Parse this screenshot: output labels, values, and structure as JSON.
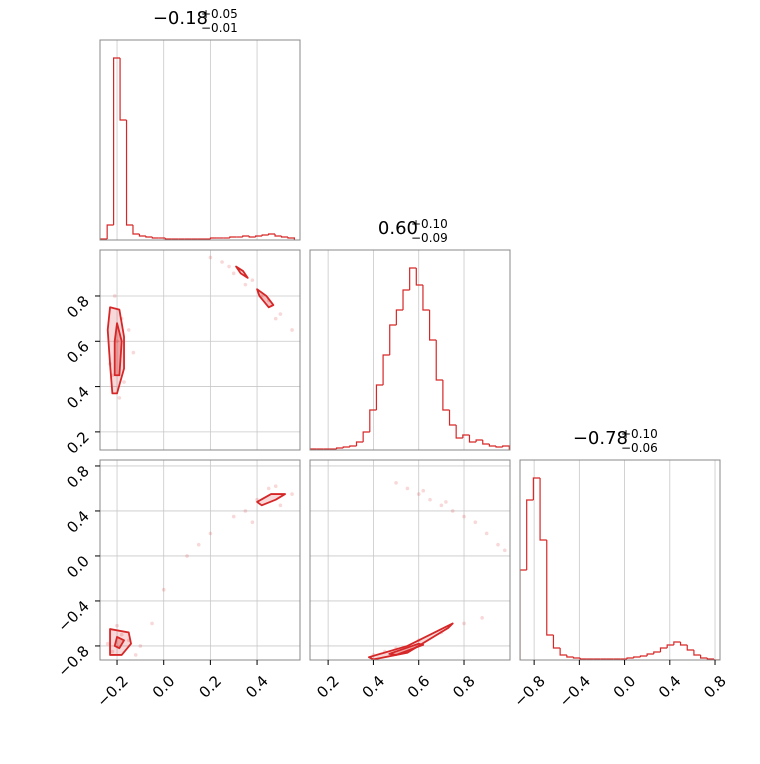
{
  "chart_data": [
    {
      "type": "hist",
      "title": "−0.18",
      "title_upper": "+0.05",
      "title_lower": "−0.01",
      "color": "#d62728",
      "grid": true,
      "bins": [
        -0.27,
        -0.2423,
        -0.2147,
        -0.187,
        -0.1593,
        -0.1317,
        -0.104,
        -0.0763,
        -0.0487,
        -0.021,
        0.0067,
        0.0343,
        0.062,
        0.0897,
        0.1173,
        0.145,
        0.1727,
        0.2003,
        0.228,
        0.2557,
        0.2833,
        0.311,
        0.3387,
        0.3663,
        0.394,
        0.4217,
        0.4493,
        0.477,
        0.5047,
        0.5323,
        0.56
      ],
      "counts": [
        1,
        15,
        182,
        120,
        15,
        6,
        4,
        3,
        2,
        2,
        1,
        1,
        1,
        1,
        1,
        1,
        1,
        2,
        2,
        2,
        3,
        3,
        4,
        3,
        4,
        5,
        6,
        4,
        3,
        2
      ],
      "xlim": [
        -0.273,
        0.584
      ],
      "xticks": [
        {
          "value": -0.2,
          "label": "−0.2"
        },
        {
          "value": 0,
          "label": "0.0"
        },
        0.2,
        0.4
      ],
      "ylim": [
        0,
        200
      ]
    },
    {
      "type": "contour",
      "color": "#d62728",
      "grid": true,
      "x": [
        -0.22,
        -0.2,
        -0.18,
        -0.15,
        -0.21,
        -0.19,
        -0.13,
        -0.23,
        -0.17,
        0.2,
        0.25,
        0.3,
        0.35,
        0.38,
        0.45,
        0.5,
        0.55,
        0.42,
        0.28,
        0.48
      ],
      "y": [
        0.45,
        0.6,
        0.7,
        0.65,
        0.8,
        0.35,
        0.55,
        0.5,
        0.42,
        0.97,
        0.95,
        0.9,
        0.85,
        0.87,
        0.78,
        0.72,
        0.65,
        0.8,
        0.93,
        0.7
      ],
      "contours": [
        {
          "x": [
            -0.22,
            -0.23,
            -0.24,
            -0.23,
            -0.19,
            -0.17,
            -0.17,
            -0.2
          ],
          "y": [
            0.37,
            0.5,
            0.65,
            0.75,
            0.74,
            0.62,
            0.48,
            0.37
          ]
        },
        {
          "x": [
            -0.21,
            -0.21,
            -0.2,
            -0.18,
            -0.19
          ],
          "y": [
            0.45,
            0.6,
            0.68,
            0.6,
            0.45
          ]
        },
        {
          "x": [
            0.31,
            0.33,
            0.36,
            0.34
          ],
          "y": [
            0.93,
            0.9,
            0.88,
            0.91
          ]
        },
        {
          "x": [
            0.4,
            0.44,
            0.47,
            0.45,
            0.41
          ],
          "y": [
            0.83,
            0.8,
            0.76,
            0.75,
            0.8
          ]
        }
      ],
      "xlim": [
        -0.273,
        0.584
      ],
      "ylim": [
        0.12,
        1.003
      ],
      "xticks": [
        {
          "value": -0.2,
          "label": "−0.2"
        },
        {
          "value": 0,
          "label": "0.0"
        },
        0.2,
        0.4
      ],
      "yticks": [
        0.2,
        0.4,
        0.6,
        0.8
      ]
    },
    {
      "type": "hist",
      "title": "0.60",
      "title_upper": "+0.10",
      "title_lower": "−0.09",
      "color": "#d62728",
      "grid": true,
      "bins": [
        0.12,
        0.1493,
        0.1787,
        0.208,
        0.2373,
        0.2667,
        0.296,
        0.3253,
        0.3547,
        0.384,
        0.4133,
        0.4427,
        0.472,
        0.5013,
        0.5307,
        0.56,
        0.5893,
        0.6187,
        0.648,
        0.6773,
        0.7067,
        0.736,
        0.7653,
        0.7947,
        0.824,
        0.8533,
        0.8827,
        0.912,
        0.9413,
        0.9707,
        1.0
      ],
      "counts": [
        1,
        1,
        1,
        1,
        2,
        3,
        4,
        8,
        18,
        40,
        65,
        95,
        125,
        140,
        160,
        182,
        165,
        140,
        110,
        70,
        40,
        25,
        12,
        15,
        8,
        10,
        6,
        4,
        3,
        4
      ],
      "xlim": [
        0.12,
        1.003
      ],
      "xticks": [
        0.2,
        0.4,
        0.6,
        0.8
      ],
      "ylim": [
        0,
        200
      ]
    },
    {
      "type": "contour",
      "color": "#d62728",
      "grid": true,
      "x": [
        -0.22,
        -0.18,
        -0.15,
        -0.2,
        -0.1,
        0.0,
        0.1,
        0.2,
        0.3,
        0.35,
        0.4,
        0.45,
        0.5,
        0.55,
        0.38,
        -0.05,
        0.15,
        0.48,
        -0.24,
        -0.12
      ],
      "y": [
        -0.85,
        -0.7,
        -0.75,
        -0.62,
        -0.8,
        -0.3,
        0.0,
        0.2,
        0.35,
        0.4,
        0.5,
        0.6,
        0.45,
        0.55,
        0.3,
        -0.6,
        0.1,
        0.62,
        -0.78,
        -0.88
      ],
      "contours": [
        {
          "x": [
            -0.23,
            -0.15,
            -0.14,
            -0.18,
            -0.23
          ],
          "y": [
            -0.65,
            -0.68,
            -0.78,
            -0.88,
            -0.88
          ]
        },
        {
          "x": [
            -0.2,
            -0.17,
            -0.19,
            -0.21
          ],
          "y": [
            -0.72,
            -0.75,
            -0.82,
            -0.8
          ]
        },
        {
          "x": [
            0.4,
            0.46,
            0.52,
            0.48,
            0.42
          ],
          "y": [
            0.48,
            0.55,
            0.55,
            0.5,
            0.45
          ]
        }
      ],
      "xlim": [
        -0.273,
        0.584
      ],
      "ylim": [
        -0.925,
        0.853
      ],
      "xticks": [
        {
          "value": -0.2,
          "label": "−0.2"
        },
        {
          "value": 0,
          "label": "0.0"
        },
        0.2,
        0.4
      ],
      "yticks": [
        {
          "value": -0.8,
          "label": "−0.8"
        },
        {
          "value": -0.4,
          "label": "−0.4"
        },
        {
          "value": 0,
          "label": "0.0"
        },
        0.4,
        0.8
      ]
    },
    {
      "type": "contour",
      "color": "#d62728",
      "grid": true,
      "x": [
        0.5,
        0.55,
        0.6,
        0.65,
        0.7,
        0.75,
        0.8,
        0.85,
        0.9,
        0.95,
        0.4,
        0.45,
        0.5,
        0.6,
        0.7,
        0.8,
        0.88,
        0.98,
        0.62,
        0.72
      ],
      "y": [
        0.65,
        0.6,
        0.55,
        0.5,
        0.45,
        0.4,
        0.35,
        0.3,
        0.2,
        0.1,
        -0.88,
        -0.85,
        -0.82,
        -0.75,
        -0.68,
        -0.6,
        -0.55,
        0.05,
        0.58,
        0.48
      ],
      "contours": [
        {
          "x": [
            0.38,
            0.55,
            0.75,
            0.73,
            0.55,
            0.4
          ],
          "y": [
            -0.9,
            -0.8,
            -0.6,
            -0.64,
            -0.86,
            -0.92
          ]
        },
        {
          "x": [
            0.47,
            0.6,
            0.62,
            0.5
          ],
          "y": [
            -0.87,
            -0.78,
            -0.79,
            -0.88
          ]
        }
      ],
      "xlim": [
        0.12,
        1.003
      ],
      "ylim": [
        -0.925,
        0.853
      ],
      "xticks": [
        0.2,
        0.4,
        0.6,
        0.8
      ],
      "yticks": [
        -0.8,
        -0.4,
        0,
        0.4,
        0.8
      ]
    },
    {
      "type": "hist",
      "title": "−0.78",
      "title_upper": "+0.10",
      "title_lower": "−0.06",
      "color": "#d62728",
      "grid": true,
      "bins": [
        -0.925,
        -0.8658,
        -0.8067,
        -0.7475,
        -0.6883,
        -0.6292,
        -0.57,
        -0.5108,
        -0.4517,
        -0.3925,
        -0.3333,
        -0.2742,
        -0.215,
        -0.1558,
        -0.0967,
        -0.0375,
        0.0217,
        0.0808,
        0.14,
        0.1992,
        0.2583,
        0.3175,
        0.3767,
        0.4358,
        0.495,
        0.5542,
        0.6133,
        0.6725,
        0.7317,
        0.7908,
        0.85
      ],
      "counts": [
        90,
        160,
        182,
        120,
        25,
        12,
        5,
        3,
        2,
        1,
        1,
        1,
        1,
        1,
        1,
        1,
        2,
        3,
        4,
        6,
        8,
        12,
        15,
        18,
        15,
        10,
        5,
        2,
        1,
        0
      ],
      "xlim": [
        -0.925,
        0.844
      ],
      "xticks": [
        {
          "value": -0.8,
          "label": "−0.8"
        },
        {
          "value": -0.4,
          "label": "−0.4"
        },
        {
          "value": 0,
          "label": "0.0"
        },
        0.4,
        0.8
      ],
      "ylim": [
        0,
        200
      ]
    }
  ]
}
